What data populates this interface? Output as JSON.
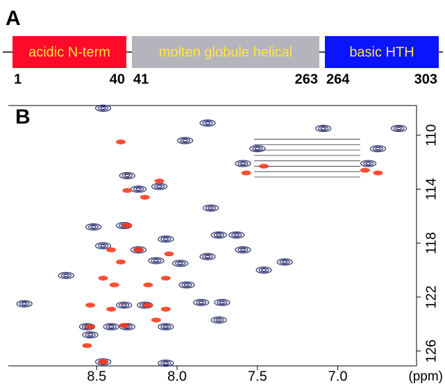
{
  "panel_a": {
    "label": "A",
    "domains": [
      {
        "text": "acidic N-term",
        "start": 1,
        "end": 40,
        "color": "#ff0a2a"
      },
      {
        "text": "molten globule helical",
        "start": 41,
        "end": 263,
        "color": "#b4b4bc"
      },
      {
        "text": "basic HTH",
        "start": 264,
        "end": 303,
        "color": "#0a14ff"
      }
    ]
  },
  "chart_data": {
    "type": "scatter",
    "panel_label": "B",
    "x_label": "(ppm)",
    "xlim": [
      9.05,
      6.51
    ],
    "ylim": [
      107.8,
      127.1
    ],
    "xticks": [
      8.5,
      {
        "value": 8,
        "label": "8.0"
      },
      7.5,
      {
        "value": 7,
        "label": "7.0"
      }
    ],
    "yticks": [
      110,
      114,
      118,
      122,
      126
    ],
    "series": [
      {
        "color": "#2a2f6e",
        "x": [
          8.46,
          7.95,
          7.81,
          7.09,
          6.62,
          8.31,
          8.11,
          8.24,
          8.52,
          8.33,
          7.63,
          7.74,
          7.79,
          8.07,
          8.46,
          8.24,
          8.13,
          7.98,
          7.81,
          7.59,
          8.69,
          8.95,
          7.46,
          7.33,
          7.94,
          7.85,
          7.72,
          7.74,
          8.33,
          8.2,
          8.41,
          8.07,
          8.54,
          8.46,
          8.07,
          8.31,
          8.56,
          7.5,
          7.59,
          6.75,
          6.81
        ],
        "values": [
          108.0,
          110.4,
          109.1,
          109.5,
          109.5,
          113.0,
          113.8,
          114.0,
          116.8,
          116.7,
          117.4,
          117.4,
          115.4,
          117.7,
          118.2,
          118.5,
          119.3,
          119.5,
          119.0,
          118.5,
          120.4,
          122.5,
          120.0,
          119.4,
          121.1,
          122.4,
          122.4,
          123.7,
          122.6,
          122.6,
          124.2,
          124.2,
          124.8,
          126.8,
          126.9,
          124.2,
          124.2,
          111.0,
          112.1,
          111.0,
          112.1
        ]
      },
      {
        "color": "#ff3010",
        "x": [
          8.35,
          8.31,
          8.11,
          8.2,
          8.31,
          8.24,
          8.41,
          8.05,
          8.35,
          8.46,
          8.39,
          8.07,
          8.18,
          8.54,
          8.41,
          8.18,
          8.07,
          8.54,
          8.33,
          8.13,
          8.56,
          8.46,
          7.57,
          7.46,
          6.83,
          6.75
        ],
        "values": [
          110.5,
          114.1,
          113.4,
          114.6,
          116.7,
          118.5,
          118.5,
          118.8,
          119.4,
          120.6,
          121.1,
          120.6,
          121.1,
          122.6,
          122.9,
          122.6,
          122.9,
          124.2,
          124.1,
          123.7,
          125.6,
          126.8,
          112.8,
          112.3,
          112.6,
          112.8
        ]
      }
    ]
  }
}
